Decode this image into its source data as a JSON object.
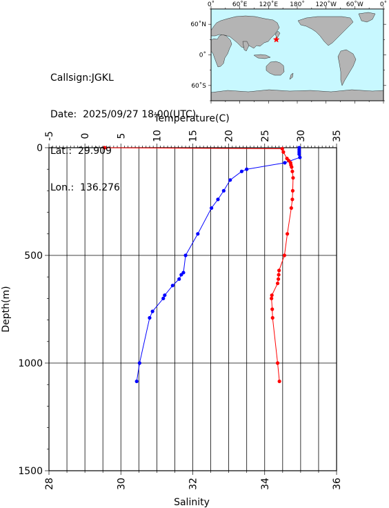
{
  "station": {
    "callsign": "Callsign:JGKL",
    "date": "Date:  2025/09/27 18:00(UTC)",
    "lat": "Lat.:  29.909",
    "lon": "Lon.:  136.276"
  },
  "map": {
    "top_labels": [
      "0˚",
      "60˚E",
      "120˚E",
      "180˚",
      "120˚W",
      "60˚W",
      "0˚"
    ],
    "left_labels": [
      "60˚N",
      "0˚",
      "60˚S"
    ],
    "ocean_color": "#c8f8ff",
    "land_color": "#b4b4b4",
    "marker_color": "#ff0000",
    "marker_lat": 29.909,
    "marker_lon": 136.276
  },
  "chart_data": {
    "type": "line",
    "temperature_axis": {
      "label": "Temperature(C)",
      "range": [
        -5,
        35
      ],
      "ticks": [
        "-5",
        "0",
        "5",
        "10",
        "15",
        "20",
        "25",
        "30",
        "35"
      ]
    },
    "salinity_axis": {
      "label": "Salinity",
      "range": [
        28,
        36
      ],
      "ticks": [
        "28",
        "30",
        "32",
        "34",
        "36"
      ]
    },
    "depth_axis": {
      "label": "Depth(m)",
      "range": [
        0,
        1500
      ],
      "ticks": [
        "0",
        "500",
        "1000",
        "1500"
      ]
    },
    "grid": true,
    "series": [
      {
        "variable": "temperature",
        "color": "#0000ff",
        "points": [
          [
            29.8,
            0
          ],
          [
            29.8,
            10
          ],
          [
            29.8,
            20
          ],
          [
            29.8,
            30
          ],
          [
            29.9,
            45
          ],
          [
            27.8,
            70
          ],
          [
            22.5,
            100
          ],
          [
            21.8,
            110
          ],
          [
            20.2,
            150
          ],
          [
            19.3,
            200
          ],
          [
            18.5,
            240
          ],
          [
            17.6,
            280
          ],
          [
            15.7,
            400
          ],
          [
            14.0,
            500
          ],
          [
            13.7,
            580
          ],
          [
            13.4,
            590
          ],
          [
            13.1,
            610
          ],
          [
            12.2,
            640
          ],
          [
            11.1,
            685
          ],
          [
            10.9,
            700
          ],
          [
            9.4,
            760
          ],
          [
            9.0,
            790
          ],
          [
            7.6,
            1000
          ],
          [
            7.2,
            1085
          ]
        ]
      },
      {
        "variable": "salinity",
        "color": "#ff0000",
        "points": [
          [
            29.55,
            0
          ],
          [
            34.49,
            5
          ],
          [
            34.52,
            20
          ],
          [
            34.62,
            50
          ],
          [
            34.67,
            60
          ],
          [
            34.72,
            70
          ],
          [
            34.73,
            80
          ],
          [
            34.75,
            90
          ],
          [
            34.77,
            110
          ],
          [
            34.79,
            140
          ],
          [
            34.78,
            200
          ],
          [
            34.77,
            240
          ],
          [
            34.74,
            280
          ],
          [
            34.63,
            400
          ],
          [
            34.55,
            500
          ],
          [
            34.4,
            570
          ],
          [
            34.39,
            590
          ],
          [
            34.38,
            610
          ],
          [
            34.36,
            630
          ],
          [
            34.2,
            685
          ],
          [
            34.19,
            700
          ],
          [
            34.21,
            750
          ],
          [
            34.22,
            790
          ],
          [
            34.36,
            1000
          ],
          [
            34.41,
            1085
          ]
        ]
      }
    ]
  }
}
